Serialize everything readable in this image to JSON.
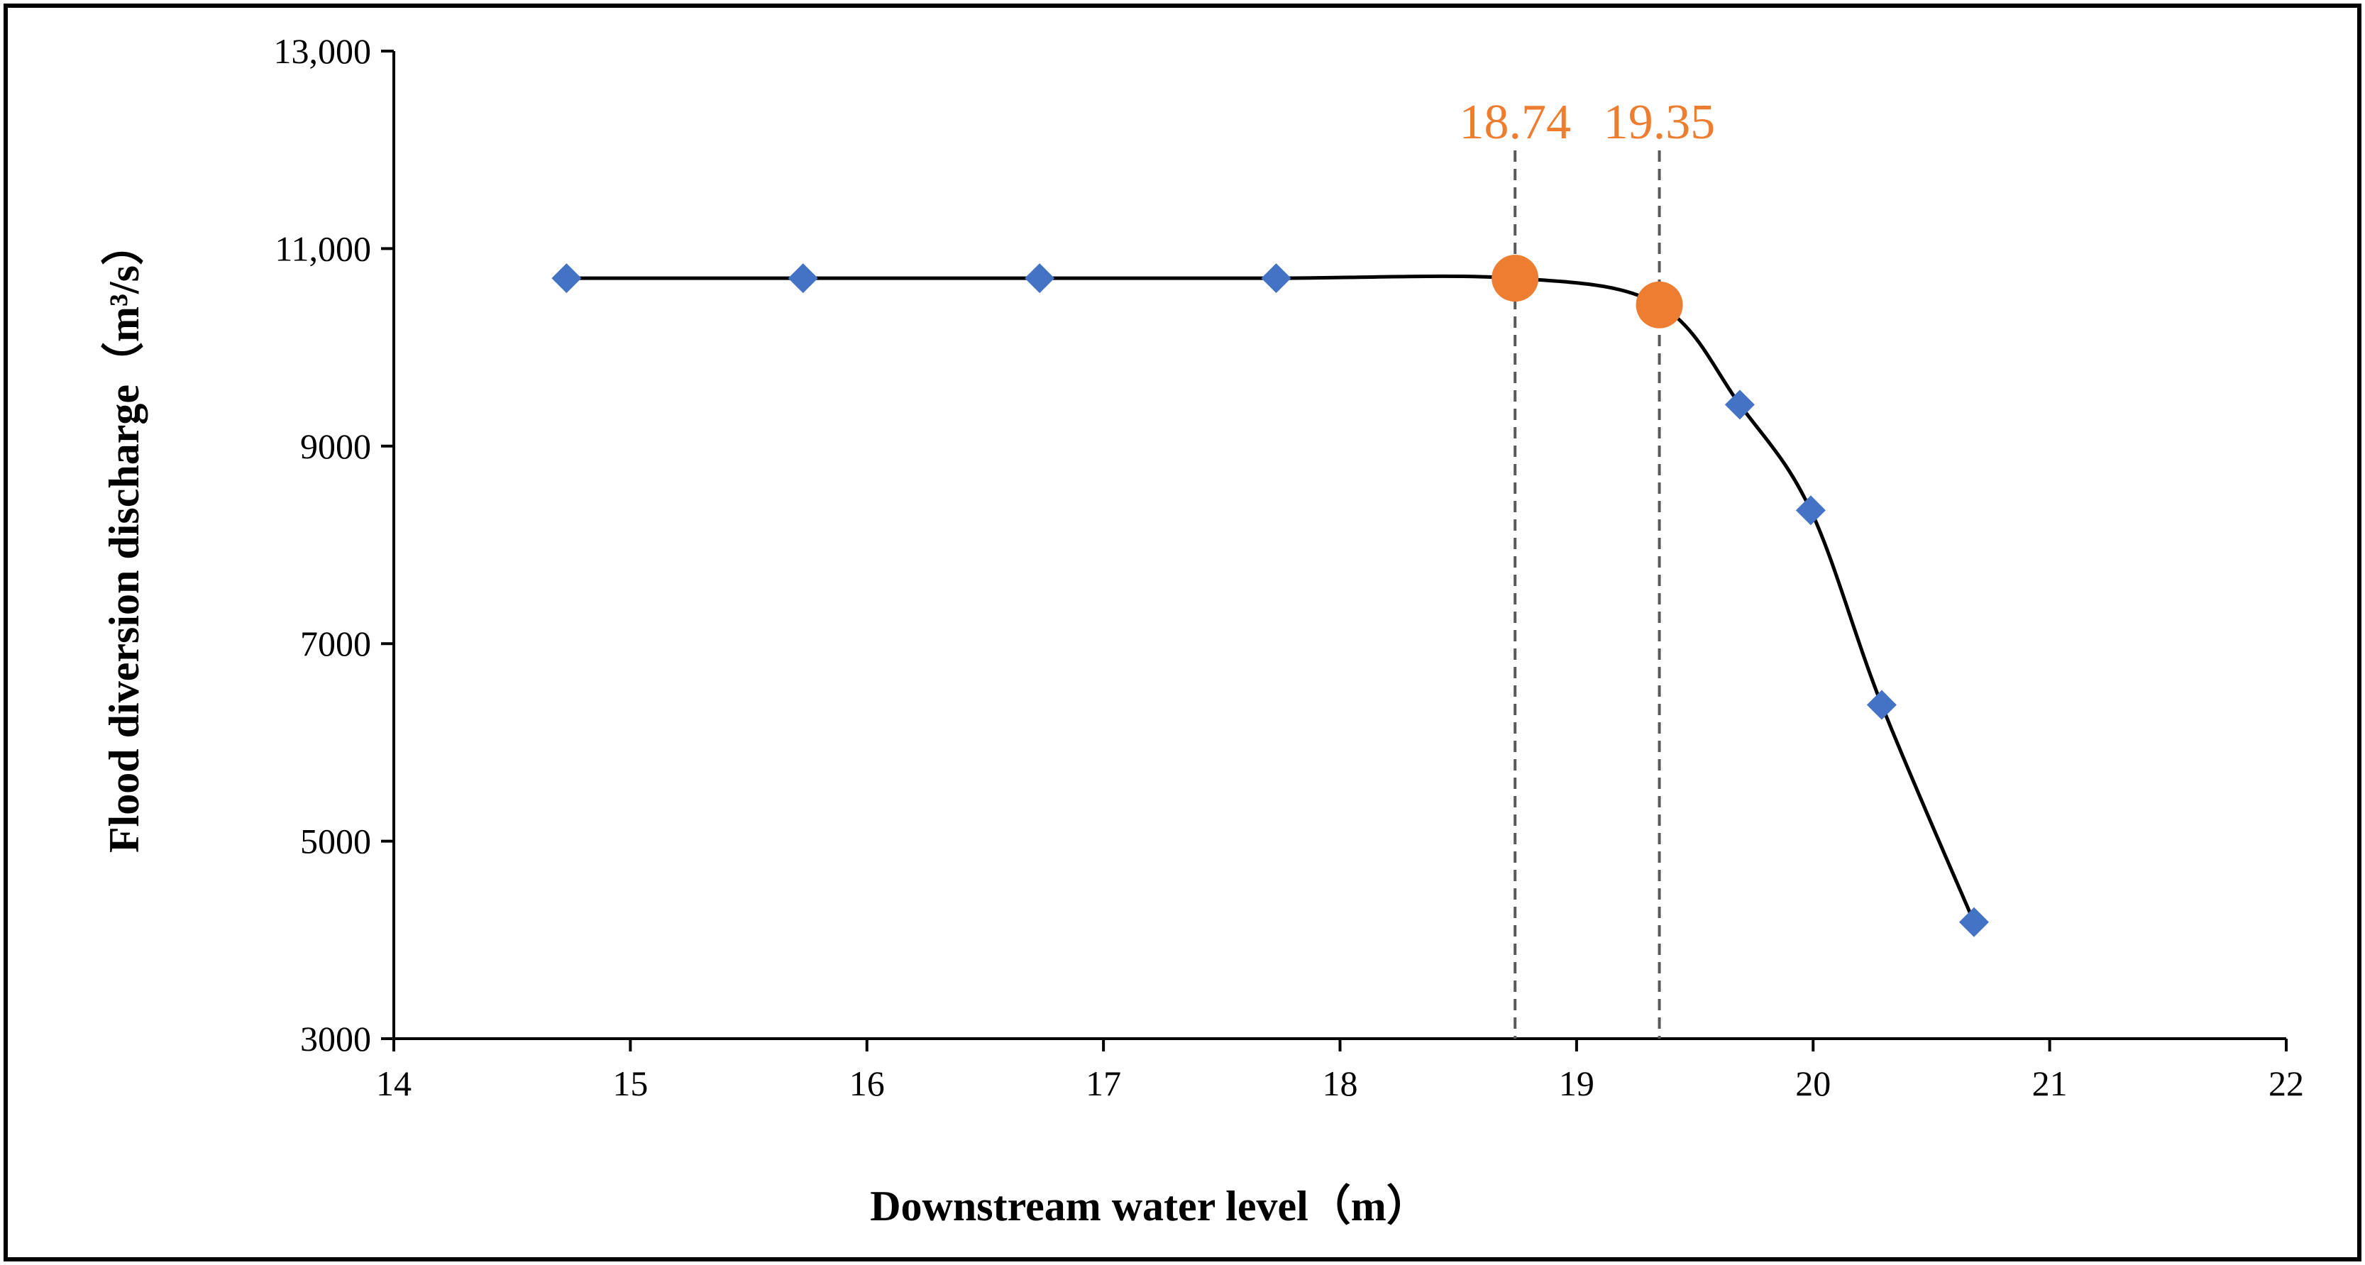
{
  "chart_data": {
    "type": "line",
    "title": "",
    "xlabel": "Downstream water level（m）",
    "ylabel": "Flood diversion discharge（m³/s）",
    "xlim": [
      14,
      22
    ],
    "ylim": [
      3000,
      13000
    ],
    "x_ticks": [
      14,
      15,
      16,
      17,
      18,
      19,
      20,
      21,
      22
    ],
    "x_tick_labels": [
      "14",
      "15",
      "16",
      "17",
      "18",
      "19",
      "20",
      "21",
      "22"
    ],
    "y_ticks": [
      3000,
      5000,
      7000,
      9000,
      11000,
      13000
    ],
    "y_tick_labels": [
      "3000",
      "5000",
      "7000",
      "9000",
      "11,000",
      "13,000"
    ],
    "grid": false,
    "legend": "none",
    "series": [
      {
        "name": "Flood diversion discharge",
        "marker": "diamond",
        "color": "#4472C4",
        "line_color": "#000000",
        "smooth": true,
        "x": [
          14.73,
          15.73,
          16.73,
          17.73,
          18.74,
          19.35,
          19.69,
          19.99,
          20.29,
          20.68
        ],
        "y": [
          10700,
          10700,
          10700,
          10700,
          10700,
          10430,
          9420,
          8350,
          6380,
          4180
        ]
      }
    ],
    "highlight_points": [
      {
        "x": 18.74,
        "y": 10700,
        "color": "#ED7D31"
      },
      {
        "x": 19.35,
        "y": 10430,
        "color": "#ED7D31"
      }
    ],
    "annotations": [
      {
        "label": "18.74",
        "x": 18.74,
        "color": "#ED7D31",
        "line_style": "dashed",
        "line_color": "#595959"
      },
      {
        "label": "19.35",
        "x": 19.35,
        "color": "#ED7D31",
        "line_style": "dashed",
        "line_color": "#595959"
      }
    ]
  }
}
